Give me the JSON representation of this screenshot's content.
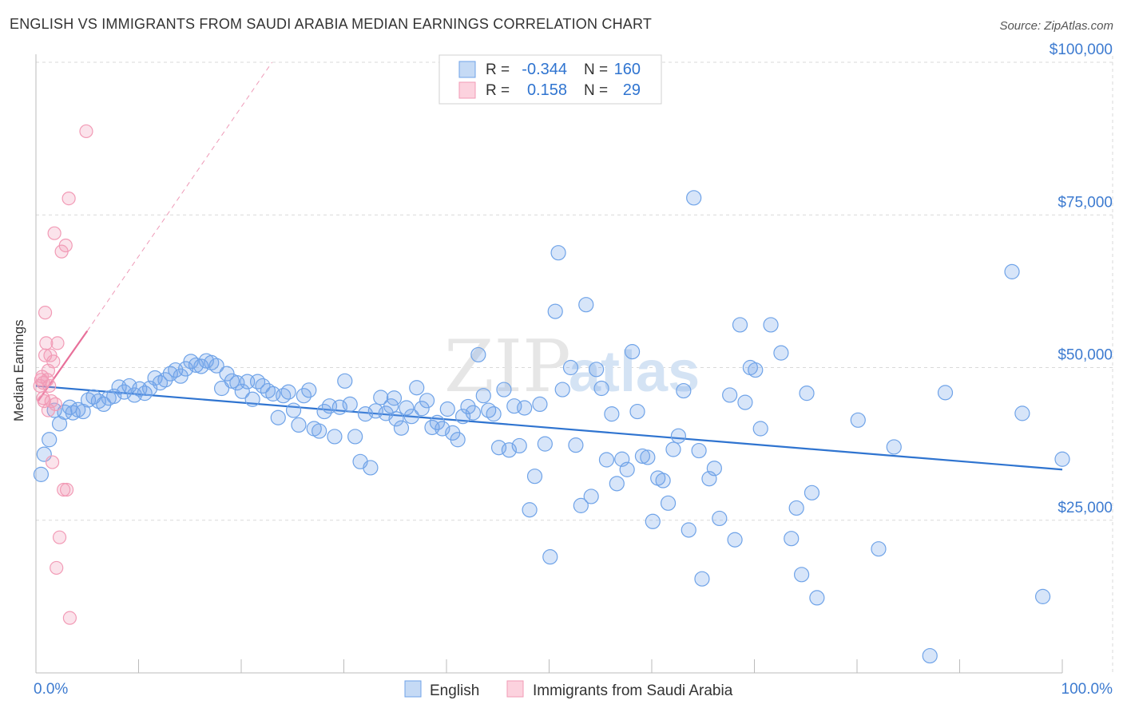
{
  "title": "ENGLISH VS IMMIGRANTS FROM SAUDI ARABIA MEDIAN EARNINGS CORRELATION CHART",
  "source": "Source: ZipAtlas.com",
  "watermark": {
    "zip": "ZIP",
    "atlas": "atlas"
  },
  "colors": {
    "english": "#6fa3e8",
    "english_line": "#2f74d0",
    "saudi": "#f29bb6",
    "saudi_line": "#e8709a",
    "grid": "#d9d9d9",
    "axis_text": "#3d7bd0"
  },
  "legend": {
    "rows": [
      {
        "r_label": "R =",
        "r_value": "-0.344",
        "n_label": "N =",
        "n_value": "160"
      },
      {
        "r_label": "R =",
        "r_value": "0.158",
        "n_label": "N =",
        "n_value": "29"
      }
    ]
  },
  "chart_data": {
    "type": "scatter",
    "title": "ENGLISH VS IMMIGRANTS FROM SAUDI ARABIA MEDIAN EARNINGS CORRELATION CHART",
    "xlabel": "",
    "ylabel": "Median Earnings",
    "xlim": [
      0,
      100
    ],
    "ylim": [
      0,
      105000
    ],
    "x_tick_labels": [
      "0.0%",
      "100.0%"
    ],
    "y_ticks": [
      25000,
      50000,
      75000,
      100000
    ],
    "y_tick_labels": [
      "$25,000",
      "$50,000",
      "$75,000",
      "$100,000"
    ],
    "series": [
      {
        "name": "English",
        "trend": {
          "x": [
            0,
            100
          ],
          "y": [
            47000,
            33300
          ]
        },
        "points": [
          [
            0.5,
            32500
          ],
          [
            0.8,
            35800
          ],
          [
            1.3,
            38200
          ],
          [
            1.8,
            43000
          ],
          [
            2.3,
            40800
          ],
          [
            2.8,
            42700
          ],
          [
            3.3,
            43500
          ],
          [
            3.6,
            42600
          ],
          [
            4.1,
            43100
          ],
          [
            4.6,
            42800
          ],
          [
            5.1,
            44700
          ],
          [
            5.6,
            45200
          ],
          [
            6.1,
            44500
          ],
          [
            6.6,
            44000
          ],
          [
            7.1,
            45000
          ],
          [
            7.6,
            45300
          ],
          [
            8.1,
            46800
          ],
          [
            8.6,
            46000
          ],
          [
            9.1,
            47000
          ],
          [
            9.6,
            45500
          ],
          [
            10.1,
            46500
          ],
          [
            10.6,
            45800
          ],
          [
            11.1,
            46600
          ],
          [
            11.6,
            48300
          ],
          [
            12.1,
            47500
          ],
          [
            12.6,
            48000
          ],
          [
            13.1,
            49000
          ],
          [
            13.6,
            49600
          ],
          [
            14.1,
            48600
          ],
          [
            14.6,
            49800
          ],
          [
            15.1,
            51000
          ],
          [
            15.6,
            50400
          ],
          [
            16.1,
            50200
          ],
          [
            16.6,
            51100
          ],
          [
            17.1,
            50800
          ],
          [
            17.6,
            50300
          ],
          [
            18.1,
            46600
          ],
          [
            18.6,
            49000
          ],
          [
            19.1,
            47800
          ],
          [
            19.6,
            47500
          ],
          [
            20.1,
            46100
          ],
          [
            20.6,
            47700
          ],
          [
            21.1,
            44800
          ],
          [
            21.6,
            47700
          ],
          [
            22.1,
            47000
          ],
          [
            22.6,
            46200
          ],
          [
            23.1,
            45700
          ],
          [
            23.6,
            41800
          ],
          [
            24.1,
            45400
          ],
          [
            24.6,
            46000
          ],
          [
            25.1,
            43000
          ],
          [
            25.6,
            40600
          ],
          [
            26.1,
            45400
          ],
          [
            26.6,
            46300
          ],
          [
            27.1,
            40000
          ],
          [
            27.6,
            39600
          ],
          [
            28.1,
            42800
          ],
          [
            28.6,
            43700
          ],
          [
            29.1,
            38700
          ],
          [
            29.6,
            43500
          ],
          [
            30.1,
            47800
          ],
          [
            30.6,
            44000
          ],
          [
            31.1,
            38700
          ],
          [
            31.6,
            34600
          ],
          [
            32.1,
            42400
          ],
          [
            32.6,
            33600
          ],
          [
            33.1,
            42900
          ],
          [
            33.6,
            45100
          ],
          [
            34.1,
            42500
          ],
          [
            34.6,
            43700
          ],
          [
            34.9,
            45000
          ],
          [
            35.1,
            41600
          ],
          [
            35.6,
            40100
          ],
          [
            36.1,
            43400
          ],
          [
            36.6,
            42000
          ],
          [
            37.1,
            46700
          ],
          [
            37.6,
            43300
          ],
          [
            38.1,
            44600
          ],
          [
            38.6,
            40200
          ],
          [
            39.1,
            41000
          ],
          [
            39.6,
            40000
          ],
          [
            40.1,
            43200
          ],
          [
            40.6,
            39300
          ],
          [
            41.1,
            38200
          ],
          [
            41.6,
            42000
          ],
          [
            42.1,
            43600
          ],
          [
            42.6,
            42600
          ],
          [
            43.1,
            52100
          ],
          [
            43.6,
            45400
          ],
          [
            44.1,
            43000
          ],
          [
            44.6,
            42400
          ],
          [
            45.1,
            36900
          ],
          [
            45.6,
            46400
          ],
          [
            46.1,
            36500
          ],
          [
            46.6,
            43700
          ],
          [
            47.1,
            37200
          ],
          [
            47.6,
            43400
          ],
          [
            48.1,
            26700
          ],
          [
            48.6,
            32200
          ],
          [
            49.1,
            44000
          ],
          [
            49.6,
            37500
          ],
          [
            50.1,
            19000
          ],
          [
            50.6,
            59200
          ],
          [
            50.9,
            68800
          ],
          [
            51.3,
            46400
          ],
          [
            52.1,
            50000
          ],
          [
            52.6,
            37300
          ],
          [
            53.1,
            27400
          ],
          [
            53.6,
            60300
          ],
          [
            54.1,
            28900
          ],
          [
            54.6,
            49700
          ],
          [
            55.1,
            46600
          ],
          [
            55.6,
            34900
          ],
          [
            56.1,
            42400
          ],
          [
            56.6,
            31000
          ],
          [
            57.1,
            35000
          ],
          [
            57.6,
            33300
          ],
          [
            58.1,
            52600
          ],
          [
            58.6,
            42800
          ],
          [
            59.1,
            35500
          ],
          [
            59.6,
            35300
          ],
          [
            60.1,
            24800
          ],
          [
            60.6,
            31900
          ],
          [
            61.1,
            31500
          ],
          [
            61.6,
            27800
          ],
          [
            62.1,
            36600
          ],
          [
            62.6,
            38800
          ],
          [
            63.1,
            46200
          ],
          [
            63.6,
            23400
          ],
          [
            64.1,
            77800
          ],
          [
            64.6,
            36400
          ],
          [
            64.9,
            15400
          ],
          [
            65.6,
            31800
          ],
          [
            66.1,
            33500
          ],
          [
            66.6,
            25300
          ],
          [
            67.6,
            45500
          ],
          [
            68.1,
            21800
          ],
          [
            68.6,
            57000
          ],
          [
            69.1,
            44300
          ],
          [
            69.6,
            50000
          ],
          [
            70.1,
            49600
          ],
          [
            70.6,
            40000
          ],
          [
            71.6,
            57000
          ],
          [
            72.6,
            52400
          ],
          [
            73.6,
            22000
          ],
          [
            74.1,
            27000
          ],
          [
            74.6,
            16100
          ],
          [
            75.1,
            45800
          ],
          [
            75.6,
            29500
          ],
          [
            76.1,
            12300
          ],
          [
            80.1,
            41400
          ],
          [
            82.1,
            20300
          ],
          [
            83.6,
            37000
          ],
          [
            87.1,
            2800
          ],
          [
            88.6,
            45900
          ],
          [
            95.1,
            65700
          ],
          [
            96.1,
            42500
          ],
          [
            98.1,
            12500
          ],
          [
            100.0,
            35000
          ]
        ]
      },
      {
        "name": "Immigrants from Saudi Arabia",
        "trend": {
          "x": [
            0.2,
            5.0
          ],
          "y": [
            44500,
            56000
          ]
        },
        "trend_extension": {
          "x": [
            5.0,
            23.0
          ],
          "y": [
            56000,
            100000
          ]
        },
        "points": [
          [
            0.4,
            47000
          ],
          [
            0.5,
            48000
          ],
          [
            0.6,
            48500
          ],
          [
            0.7,
            47500
          ],
          [
            0.7,
            45000
          ],
          [
            0.8,
            44500
          ],
          [
            0.9,
            59000
          ],
          [
            0.9,
            52000
          ],
          [
            1.0,
            54000
          ],
          [
            1.1,
            48000
          ],
          [
            1.2,
            49500
          ],
          [
            1.2,
            43000
          ],
          [
            1.3,
            47000
          ],
          [
            1.4,
            52000
          ],
          [
            1.5,
            44500
          ],
          [
            1.6,
            34500
          ],
          [
            1.7,
            51000
          ],
          [
            1.8,
            72000
          ],
          [
            1.9,
            44000
          ],
          [
            2.0,
            17200
          ],
          [
            2.1,
            54000
          ],
          [
            2.3,
            22200
          ],
          [
            2.5,
            69000
          ],
          [
            2.7,
            30000
          ],
          [
            2.9,
            70000
          ],
          [
            3.0,
            30000
          ],
          [
            3.2,
            77700
          ],
          [
            3.3,
            9000
          ],
          [
            4.9,
            88700
          ]
        ]
      }
    ]
  },
  "bottom_legend": [
    {
      "label": "English"
    },
    {
      "label": "Immigrants from Saudi Arabia"
    }
  ]
}
